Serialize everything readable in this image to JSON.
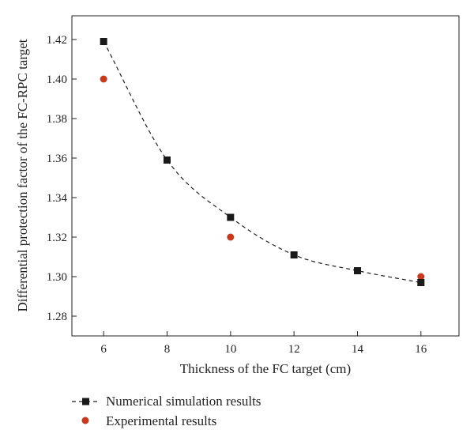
{
  "chart_data": {
    "type": "scatter",
    "xlabel": "Thickness of the FC target (cm)",
    "ylabel": "Differential protection factor of the FC-RPC target",
    "xlim": [
      5,
      17.2
    ],
    "ylim": [
      1.27,
      1.432
    ],
    "xticks": [
      6,
      8,
      10,
      12,
      14,
      16
    ],
    "yticks": [
      1.28,
      1.3,
      1.32,
      1.34,
      1.36,
      1.38,
      1.4,
      1.42
    ],
    "xtick_labels": [
      "6",
      "8",
      "10",
      "12",
      "14",
      "16"
    ],
    "ytick_labels": [
      "1.28",
      "1.30",
      "1.32",
      "1.34",
      "1.36",
      "1.38",
      "1.40",
      "1.42"
    ],
    "grid": false,
    "legend_placement": "bottom-left, below plot",
    "series": [
      {
        "name": "Numerical simulation results",
        "marker": "square",
        "line": "dashed",
        "color": "#1a1a1a",
        "x": [
          6,
          8,
          10,
          12,
          14,
          16
        ],
        "y": [
          1.419,
          1.359,
          1.33,
          1.311,
          1.303,
          1.297
        ]
      },
      {
        "name": "Experimental results",
        "marker": "circle",
        "line": "none",
        "color": "#c8391e",
        "x": [
          6,
          10,
          16
        ],
        "y": [
          1.4,
          1.32,
          1.3
        ]
      }
    ]
  }
}
